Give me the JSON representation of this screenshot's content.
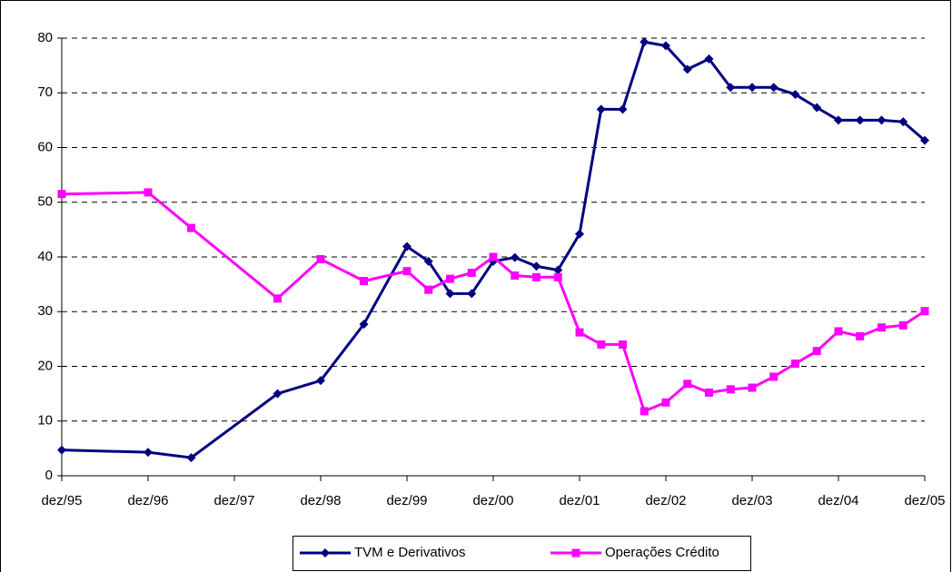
{
  "chart_data": {
    "type": "line",
    "x": [
      "dez/95",
      "dez/96",
      "jun/97",
      "jun/98",
      "dez/98",
      "jun/99",
      "dez/99",
      "mar/00",
      "jun/00",
      "set/00",
      "dez/00",
      "mar/01",
      "jun/01",
      "set/01",
      "dez/01",
      "mar/02",
      "jun/02",
      "set/02",
      "dez/02",
      "mar/03",
      "jun/03",
      "set/03",
      "dez/03",
      "mar/04",
      "jun/04",
      "set/04",
      "dez/04",
      "mar/05",
      "jun/05",
      "set/05",
      "dez/05"
    ],
    "series": [
      {
        "name": "TVM e Derivativos",
        "color": "#000080",
        "marker": "diamond",
        "values": [
          4.7,
          4.3,
          3.3,
          15,
          17.4,
          27.7,
          41.9,
          39.2,
          33.3,
          33.3,
          39.2,
          39.9,
          38.3,
          37.6,
          44.2,
          67,
          67,
          79.3,
          78.6,
          74.3,
          76.2,
          71,
          71,
          71,
          69.7,
          67.3,
          65,
          65,
          65,
          64.7,
          61.3
        ]
      },
      {
        "name": "Operações Crédito",
        "color": "#ff00ff",
        "marker": "square",
        "values": [
          51.5,
          51.8,
          45.3,
          32.4,
          39.6,
          35.6,
          37.4,
          34,
          36,
          37.1,
          40,
          36.6,
          36.3,
          36.3,
          26.2,
          24,
          24,
          11.8,
          13.4,
          16.8,
          15.2,
          15.8,
          16.1,
          18.1,
          20.5,
          22.8,
          26.4,
          25.5,
          27.1,
          27.5,
          30.1
        ]
      }
    ],
    "xlim": [
      "dez/95",
      "dez/05"
    ],
    "xticks": [
      "dez/95",
      "dez/96",
      "dez/97",
      "dez/98",
      "dez/99",
      "dez/00",
      "dez/01",
      "dez/02",
      "dez/03",
      "dez/04",
      "dez/05"
    ],
    "ylim": [
      0,
      80
    ],
    "yticks": [
      0,
      10,
      20,
      30,
      40,
      50,
      60,
      70,
      80
    ],
    "grid": true,
    "legend": "bottom"
  }
}
